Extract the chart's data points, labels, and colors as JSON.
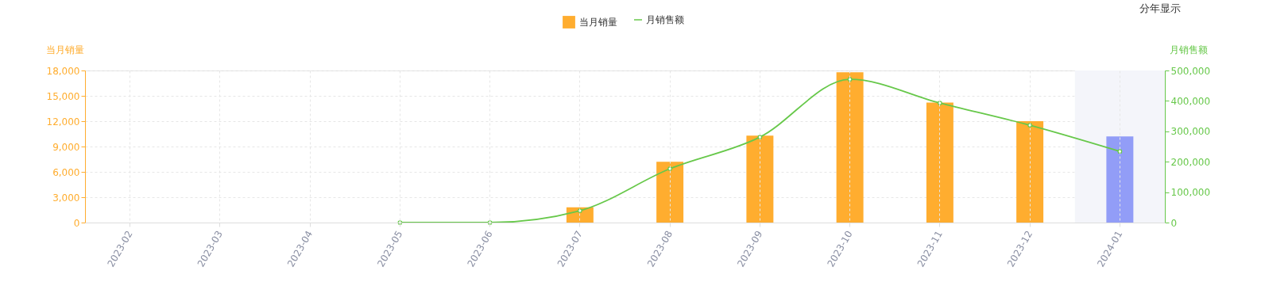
{
  "chart_data": {
    "type": "bar",
    "categories": [
      "2023-02",
      "2023-03",
      "2023-04",
      "2023-05",
      "2023-06",
      "2023-07",
      "2023-08",
      "2023-09",
      "2023-10",
      "2023-11",
      "2023-12",
      "2024-01"
    ],
    "ylabel": "当月销量",
    "y2label": "月销售额",
    "annotations": [
      "分年显示"
    ],
    "series": [
      {
        "name": "当月销量",
        "color": "#ffad2f",
        "colors": [
          "#ffad2f",
          "#ffad2f",
          "#ffad2f",
          "#ffad2f",
          "#ffad2f",
          "#ffad2f",
          "#ffad2f",
          "#ffad2f",
          "#ffad2f",
          "#ffad2f",
          "#ffad2f",
          "#929df7"
        ],
        "values": [
          null,
          null,
          null,
          null,
          null,
          1800,
          7200,
          10300,
          17800,
          14200,
          12000,
          10200
        ]
      },
      {
        "name": "月销售额",
        "type": "line",
        "axis": "y2",
        "color": "#67c84a",
        "marker": "circle",
        "values": [
          null,
          null,
          null,
          0,
          0,
          39000,
          177000,
          281000,
          471000,
          393000,
          320000,
          234000
        ]
      }
    ],
    "ylim": [
      0,
      18000
    ],
    "yticks": [
      0,
      {
        "value": 3000,
        "label": "3,000"
      },
      {
        "value": 6000,
        "label": "6,000"
      },
      {
        "value": 9000,
        "label": "9,000"
      },
      {
        "value": 12000,
        "label": "12,000"
      },
      {
        "value": 15000,
        "label": "15,000"
      },
      {
        "value": 18000,
        "label": "18,000"
      }
    ],
    "y2lim": [
      0,
      500000
    ],
    "y2ticks": [
      0,
      {
        "value": 100000,
        "label": "100,000"
      },
      {
        "value": 200000,
        "label": "200,000"
      },
      {
        "value": 300000,
        "label": "300,000"
      },
      {
        "value": 400000,
        "label": "400,000"
      },
      {
        "value": 500000,
        "label": "500,000"
      }
    ],
    "bands": [
      {
        "axis": "x",
        "from": "2024-01",
        "to": "2024-01",
        "color": "#f4f5fa"
      }
    ],
    "grid": true,
    "legend": "top"
  }
}
